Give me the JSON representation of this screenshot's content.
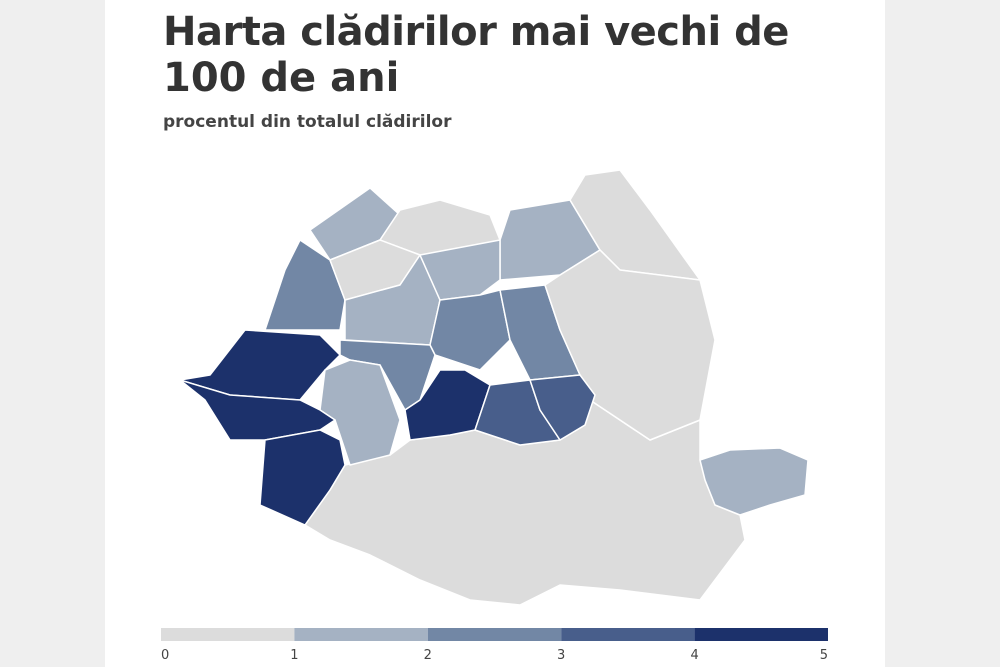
{
  "header": {
    "title_line1": "Harta clădirilor mai vechi de",
    "title_line2": "100 de ani",
    "subtitle": "procentul din totalul clădirilor"
  },
  "legend": {
    "ticks": [
      0,
      1,
      2,
      3,
      4,
      5
    ],
    "colors": [
      "#dcdcdc",
      "#a5b2c3",
      "#7287a5",
      "#485e8b",
      "#1c316b"
    ]
  }
}
